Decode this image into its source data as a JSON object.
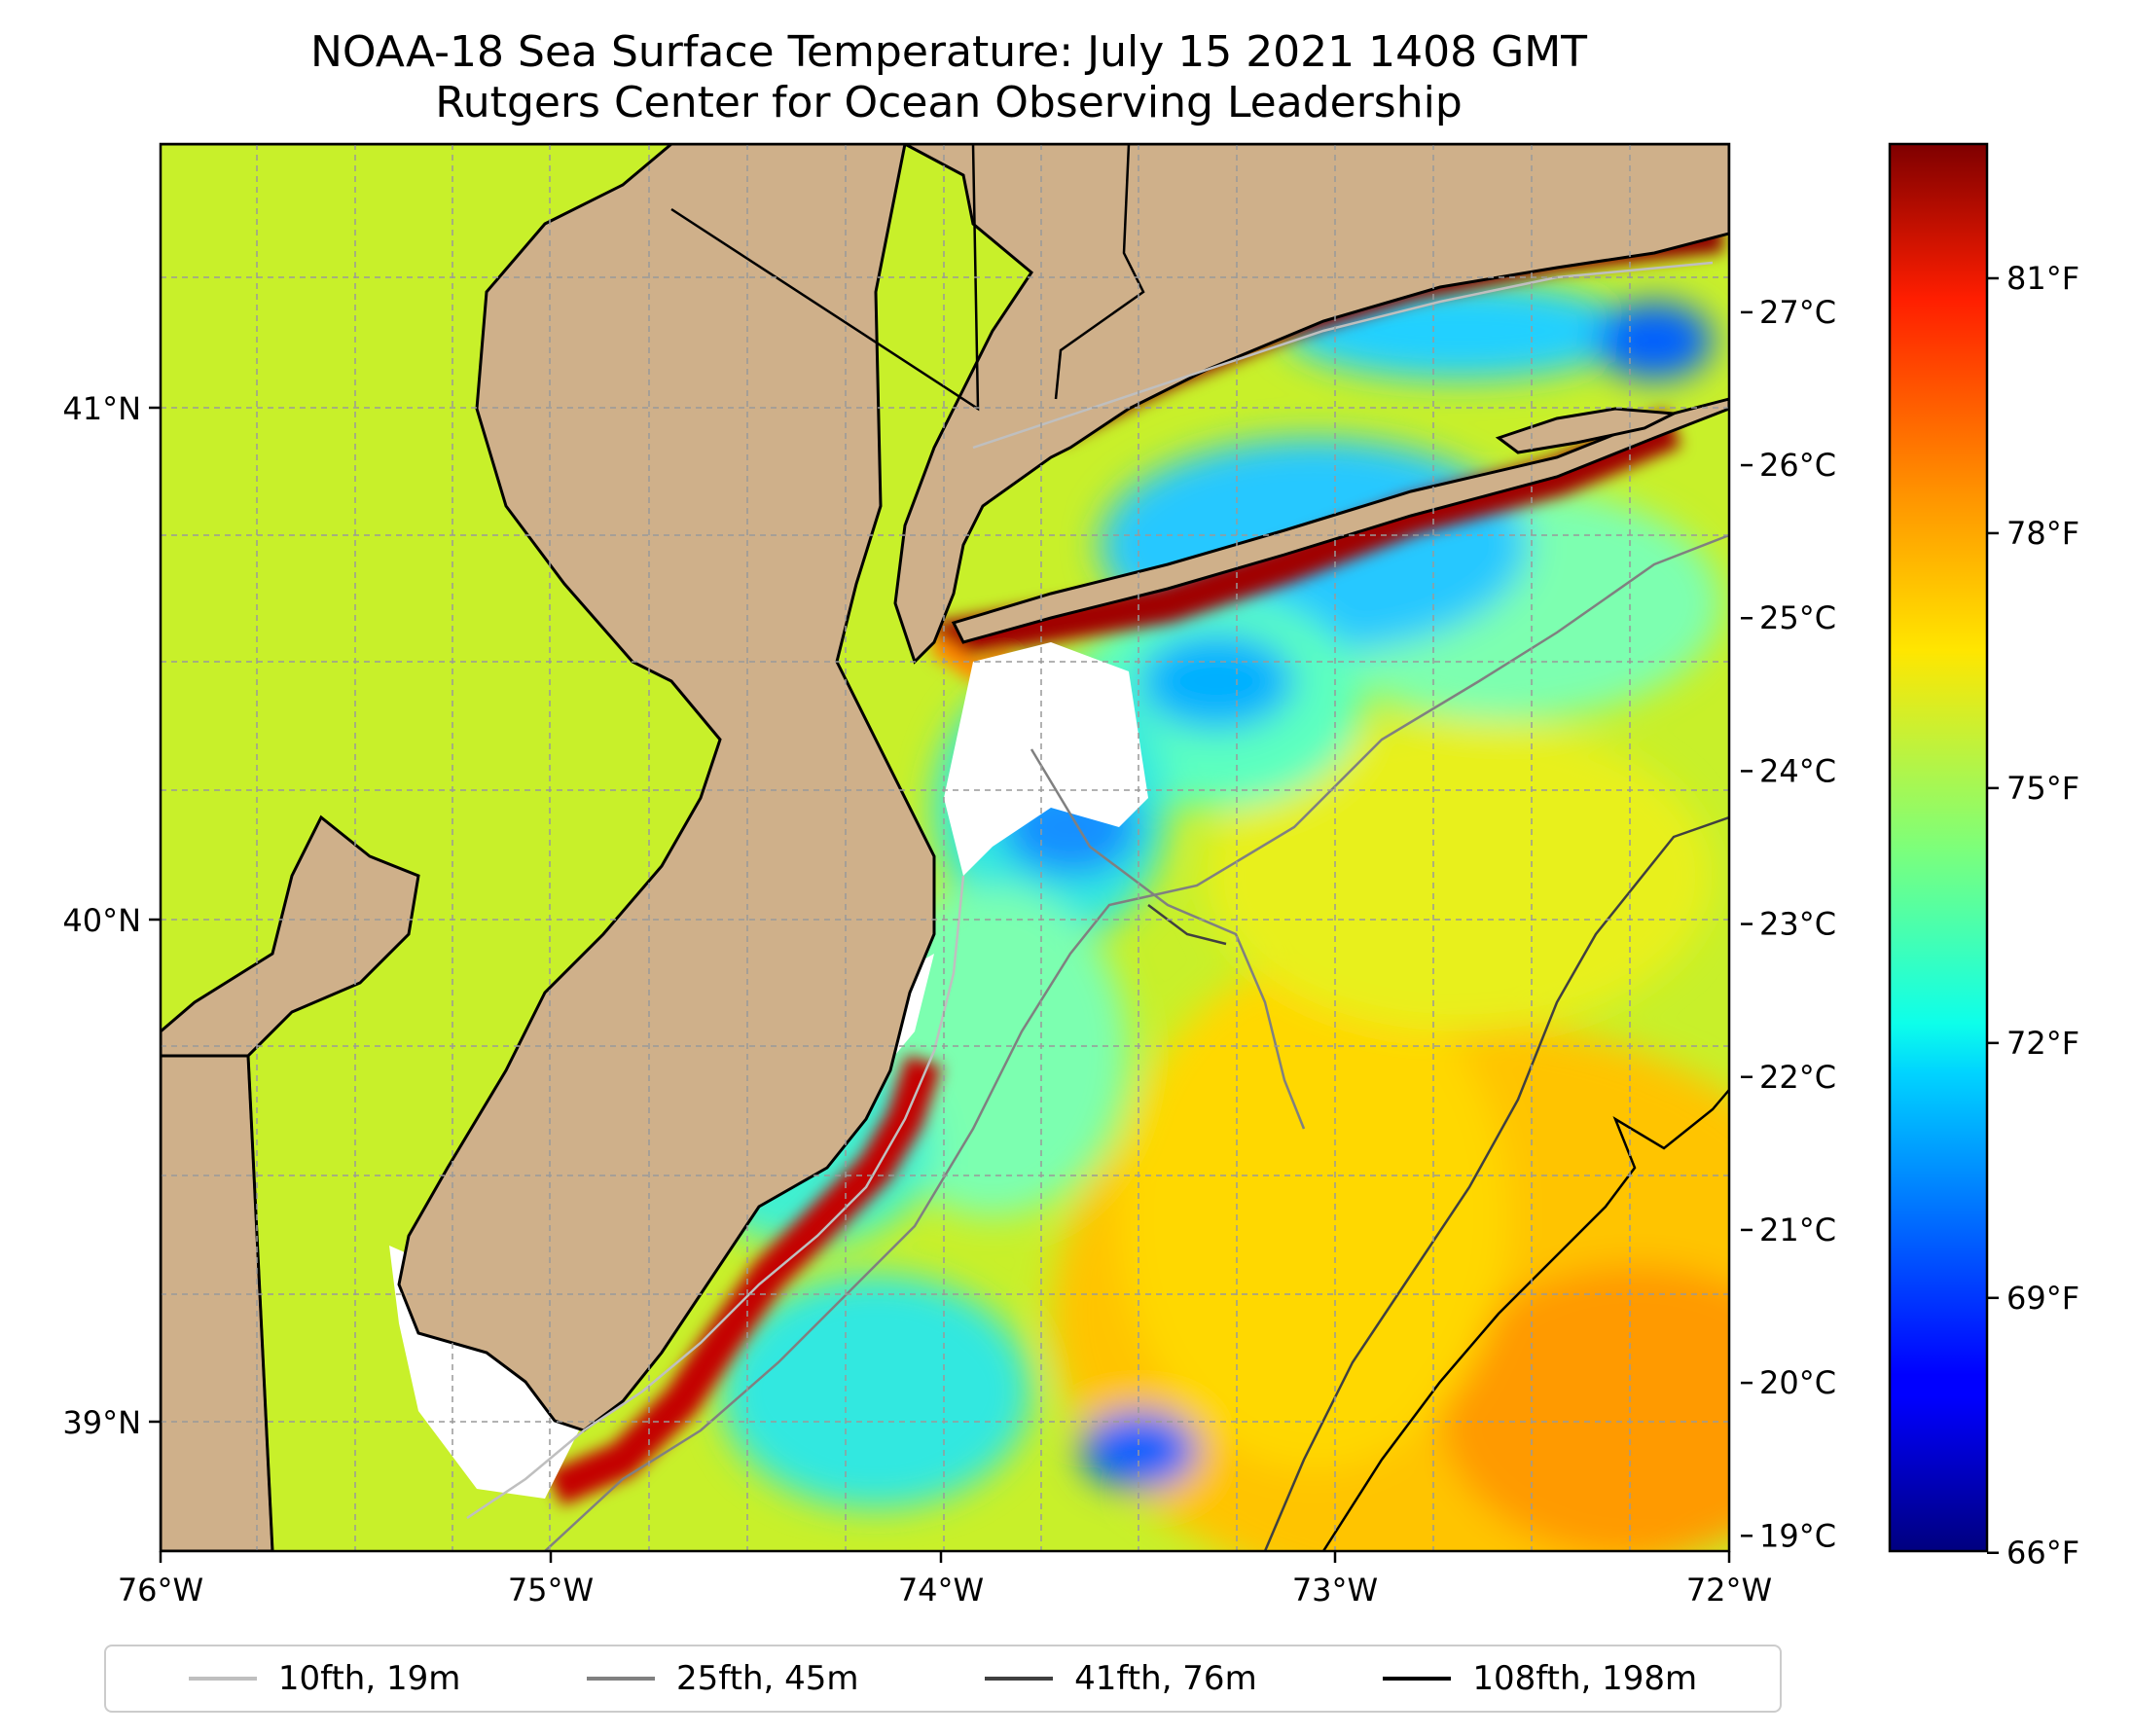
{
  "title": {
    "line1": "NOAA-18 Sea Surface Temperature: July 15 2021 1408 GMT",
    "line2": "Rutgers Center for Ocean Observing Leadership"
  },
  "map": {
    "lon_range": [
      -76,
      -72
    ],
    "lat_range": [
      38.72,
      41.5
    ],
    "land_color": "#cfb08a",
    "missing_color": "#ffffff",
    "x_ticks": [
      "76°W",
      "75°W",
      "74°W",
      "73°W",
      "72°W"
    ],
    "y_ticks": [
      "41°N",
      "40°N",
      "39°N"
    ],
    "y_tick_values": [
      41,
      40,
      39
    ],
    "x_tick_values": [
      -76,
      -75,
      -74,
      -73,
      -72
    ],
    "grid": true
  },
  "colorbar": {
    "colormap": "jet",
    "range_c": [
      18.9,
      28.1
    ],
    "celsius_ticks": [
      "19°C",
      "20°C",
      "21°C",
      "22°C",
      "23°C",
      "24°C",
      "25°C",
      "26°C",
      "27°C"
    ],
    "celsius_values": [
      19,
      20,
      21,
      22,
      23,
      24,
      25,
      26,
      27
    ],
    "fahrenheit_ticks": [
      "66°F",
      "69°F",
      "72°F",
      "75°F",
      "78°F",
      "81°F"
    ],
    "fahrenheit_values": [
      66,
      69,
      72,
      75,
      78,
      81
    ]
  },
  "legend": {
    "items": [
      {
        "label": "10fth, 19m",
        "color": "#bfbfbf"
      },
      {
        "label": "25fth, 45m",
        "color": "#808080"
      },
      {
        "label": "41fth, 76m",
        "color": "#404040"
      },
      {
        "label": "108fth, 198m",
        "color": "#000000"
      }
    ]
  }
}
